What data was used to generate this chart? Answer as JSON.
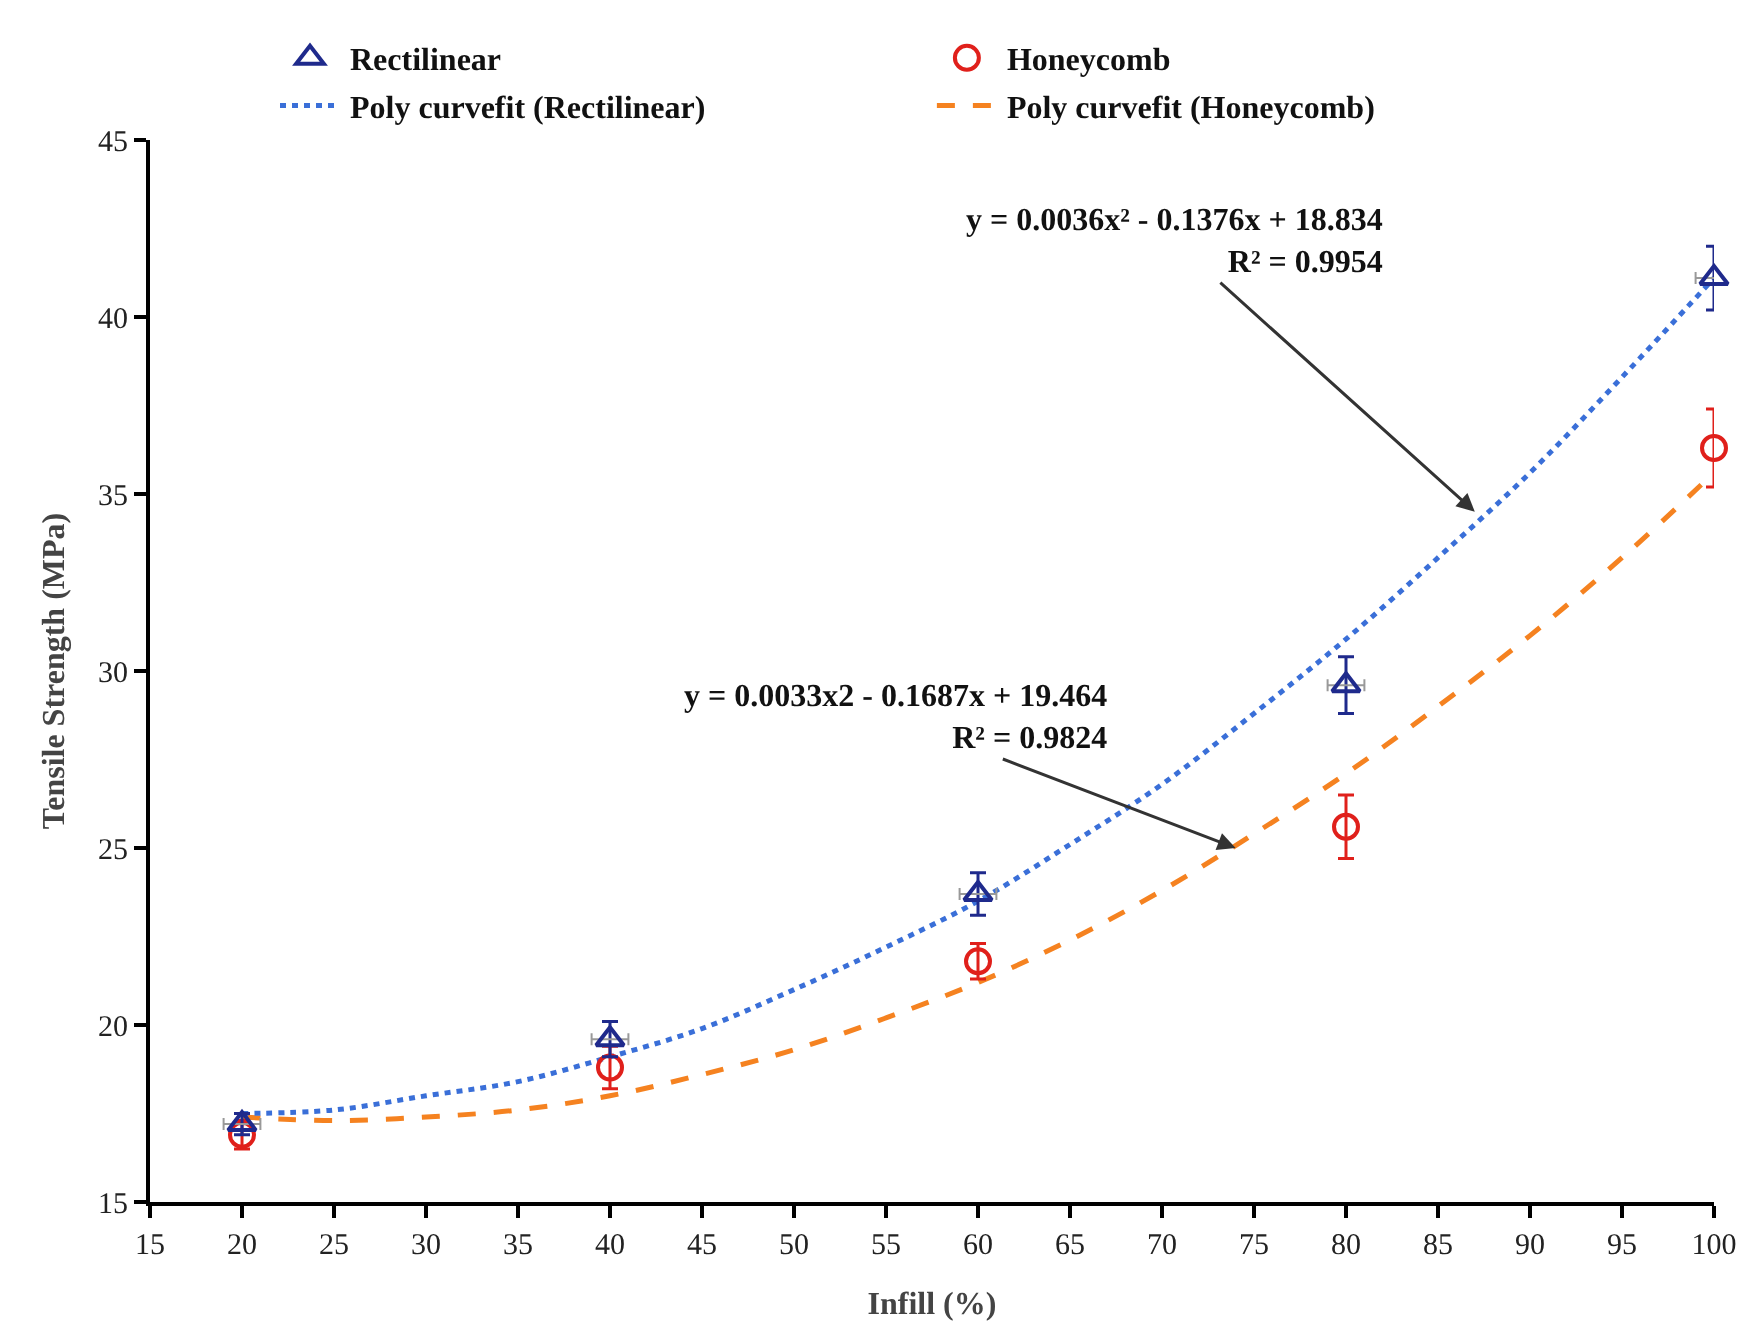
{
  "chart_data": {
    "type": "scatter",
    "xlabel": "Infill (%)",
    "ylabel": "Tensile Strength (MPa)",
    "xlim": [
      15,
      100
    ],
    "xticks": [
      15,
      20,
      25,
      30,
      35,
      40,
      45,
      50,
      55,
      60,
      65,
      70,
      75,
      80,
      85,
      90,
      95,
      100
    ],
    "ylim": [
      15,
      45
    ],
    "yticks": [
      15,
      20,
      25,
      30,
      35,
      40,
      45
    ],
    "grid": false,
    "legend": "top",
    "series": [
      {
        "name": "Rectilinear",
        "type": "scatter",
        "marker": "triangle",
        "color": "#1f2a8c",
        "x": [
          20,
          40,
          60,
          80,
          100
        ],
        "values": [
          17.2,
          19.6,
          23.7,
          29.6,
          41.1
        ],
        "errors": [
          0.3,
          0.5,
          0.6,
          0.8,
          0.9
        ],
        "xerrors": [
          1,
          1,
          1,
          1,
          1
        ]
      },
      {
        "name": "Honeycomb",
        "type": "scatter",
        "marker": "circle",
        "color": "#e0201b",
        "x": [
          20,
          40,
          60,
          80,
          100
        ],
        "values": [
          16.9,
          18.8,
          21.8,
          25.6,
          36.3
        ],
        "errors": [
          0.4,
          0.6,
          0.5,
          0.9,
          1.1
        ]
      },
      {
        "name": "Poly curvefit (Rectilinear)",
        "type": "line",
        "marker": "none",
        "line_style": "dotted",
        "color": "#3a6fd8",
        "x": [
          20,
          25,
          30,
          35,
          40,
          45,
          50,
          55,
          60,
          65,
          70,
          75,
          80,
          85,
          90,
          95,
          100
        ],
        "values": [
          17.5,
          17.6,
          18.0,
          18.4,
          19.1,
          19.9,
          21.0,
          22.2,
          23.5,
          25.1,
          26.8,
          28.8,
          30.9,
          33.2,
          35.6,
          38.3,
          41.1
        ]
      },
      {
        "name": "Poly curvefit (Honeycomb)",
        "type": "line",
        "marker": "none",
        "line_style": "dashed",
        "color": "#f58220",
        "x": [
          20,
          25,
          30,
          35,
          40,
          45,
          50,
          55,
          60,
          65,
          70,
          75,
          80,
          85,
          90,
          95,
          100
        ],
        "values": [
          17.4,
          17.3,
          17.4,
          17.6,
          18.0,
          18.6,
          19.3,
          20.2,
          21.2,
          22.4,
          23.8,
          25.4,
          27.1,
          29.0,
          31.0,
          33.2,
          35.6
        ]
      }
    ],
    "annotations": [
      {
        "text": "y = 0.0036x² - 0.1376x + 18.834\nR² = 0.9954",
        "x": 87,
        "y": 34.5
      },
      {
        "text": "y = 0.0033x2 - 0.1687x + 19.464\nR² = 0.9824",
        "x": 74,
        "y": 25
      }
    ]
  }
}
